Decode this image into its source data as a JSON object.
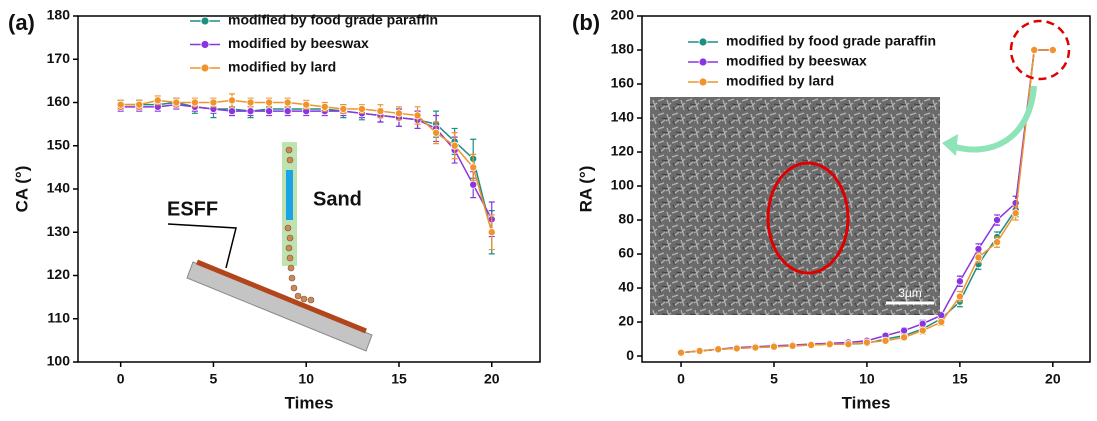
{
  "chart_data": [
    {
      "type": "line",
      "panel_label": "(a)",
      "x_label": "Times",
      "y_label": "CA (°)",
      "annotations": [
        "ESFF",
        "Sand"
      ],
      "x": [
        0,
        1,
        2,
        3,
        4,
        5,
        6,
        7,
        8,
        9,
        10,
        11,
        12,
        13,
        14,
        15,
        16,
        17,
        18,
        19,
        20
      ],
      "xlim": [
        -2.3,
        22.6
      ],
      "xticks": [
        0,
        5,
        10,
        15,
        20
      ],
      "ylim": [
        100,
        180
      ],
      "yticks": [
        100,
        110,
        120,
        130,
        140,
        150,
        160,
        170,
        180
      ],
      "series": [
        {
          "name": "modified by food grade paraffin",
          "color": "#1b8f80",
          "values": [
            159.5,
            159.5,
            159.5,
            160,
            159,
            158.5,
            158.5,
            158,
            158.5,
            158.5,
            158.5,
            158.5,
            158,
            157.5,
            157,
            156.5,
            156,
            155,
            151,
            147,
            130
          ],
          "errors": [
            1,
            1,
            1,
            1,
            1.5,
            2,
            1.5,
            1.5,
            1,
            1,
            1,
            1,
            1.5,
            1.5,
            1.5,
            2,
            2,
            3,
            3,
            4.5,
            5
          ]
        },
        {
          "name": "modified by beeswax",
          "color": "#8a35e0",
          "values": [
            159,
            159,
            159,
            159.5,
            159,
            158.5,
            158,
            158,
            158,
            158,
            158,
            158,
            158,
            157.5,
            157,
            156.5,
            156,
            154,
            149,
            141,
            133
          ],
          "errors": [
            1,
            1,
            1,
            1,
            1,
            1,
            1,
            1,
            1,
            1,
            1,
            1,
            1,
            1,
            1.5,
            2,
            2,
            3,
            3,
            3,
            4
          ]
        },
        {
          "name": "modified by lard",
          "color": "#f0932b",
          "values": [
            159.5,
            159.5,
            160.5,
            160,
            160,
            160,
            160.5,
            160,
            160,
            160,
            159.5,
            159,
            158.5,
            158.5,
            158,
            157.5,
            157,
            153,
            150,
            145,
            130
          ],
          "errors": [
            1,
            1,
            1,
            1,
            1,
            1,
            1.5,
            1,
            1,
            1,
            1,
            1,
            1,
            1,
            1.5,
            1.5,
            2,
            2.5,
            3,
            3,
            4
          ]
        }
      ]
    },
    {
      "type": "line",
      "panel_label": "(b)",
      "x_label": "Times",
      "y_label": "RA (°)",
      "annotations": [
        "3μm"
      ],
      "x": [
        0,
        1,
        2,
        3,
        4,
        5,
        6,
        7,
        8,
        9,
        10,
        11,
        12,
        13,
        14,
        15,
        16,
        17,
        18,
        19,
        20
      ],
      "xlim": [
        -2.1,
        22
      ],
      "xticks": [
        0,
        5,
        10,
        15,
        20
      ],
      "ylim": [
        -3.5,
        200
      ],
      "yticks": [
        0,
        20,
        40,
        60,
        80,
        100,
        120,
        140,
        160,
        180,
        200
      ],
      "series": [
        {
          "name": "modified by food grade paraffin",
          "color": "#1b8f80",
          "values": [
            2,
            3,
            4,
            4.5,
            5,
            5.5,
            6,
            6.5,
            7,
            7,
            7.5,
            10,
            12,
            16,
            22,
            32,
            54,
            70,
            86,
            180,
            180
          ],
          "errors": [
            1,
            1,
            1,
            1,
            1,
            1,
            1,
            1,
            1,
            1,
            1,
            1.5,
            1.5,
            2,
            2,
            3,
            3,
            3,
            4,
            0,
            0
          ]
        },
        {
          "name": "modified by beeswax",
          "color": "#8a35e0",
          "values": [
            2,
            3,
            4,
            5,
            5.5,
            6,
            6.5,
            7,
            7.5,
            8,
            9,
            12,
            15,
            19,
            24,
            44,
            63,
            80,
            90,
            180,
            180
          ],
          "errors": [
            1,
            1,
            1,
            1,
            1,
            1,
            1,
            1,
            1,
            1,
            1,
            1.5,
            1.5,
            2,
            2,
            3,
            3,
            3,
            4,
            0,
            0
          ]
        },
        {
          "name": "modified by lard",
          "color": "#f0932b",
          "values": [
            2,
            3,
            4,
            4.5,
            5,
            5.5,
            6,
            6.5,
            7,
            7,
            8,
            9,
            11,
            15,
            20,
            35,
            58,
            67,
            84,
            180,
            180
          ],
          "errors": [
            1,
            1,
            1,
            1,
            1,
            1,
            1,
            1,
            1,
            1,
            1,
            1.5,
            1.5,
            2,
            2,
            3,
            3,
            3,
            4,
            0,
            0
          ]
        }
      ]
    }
  ]
}
